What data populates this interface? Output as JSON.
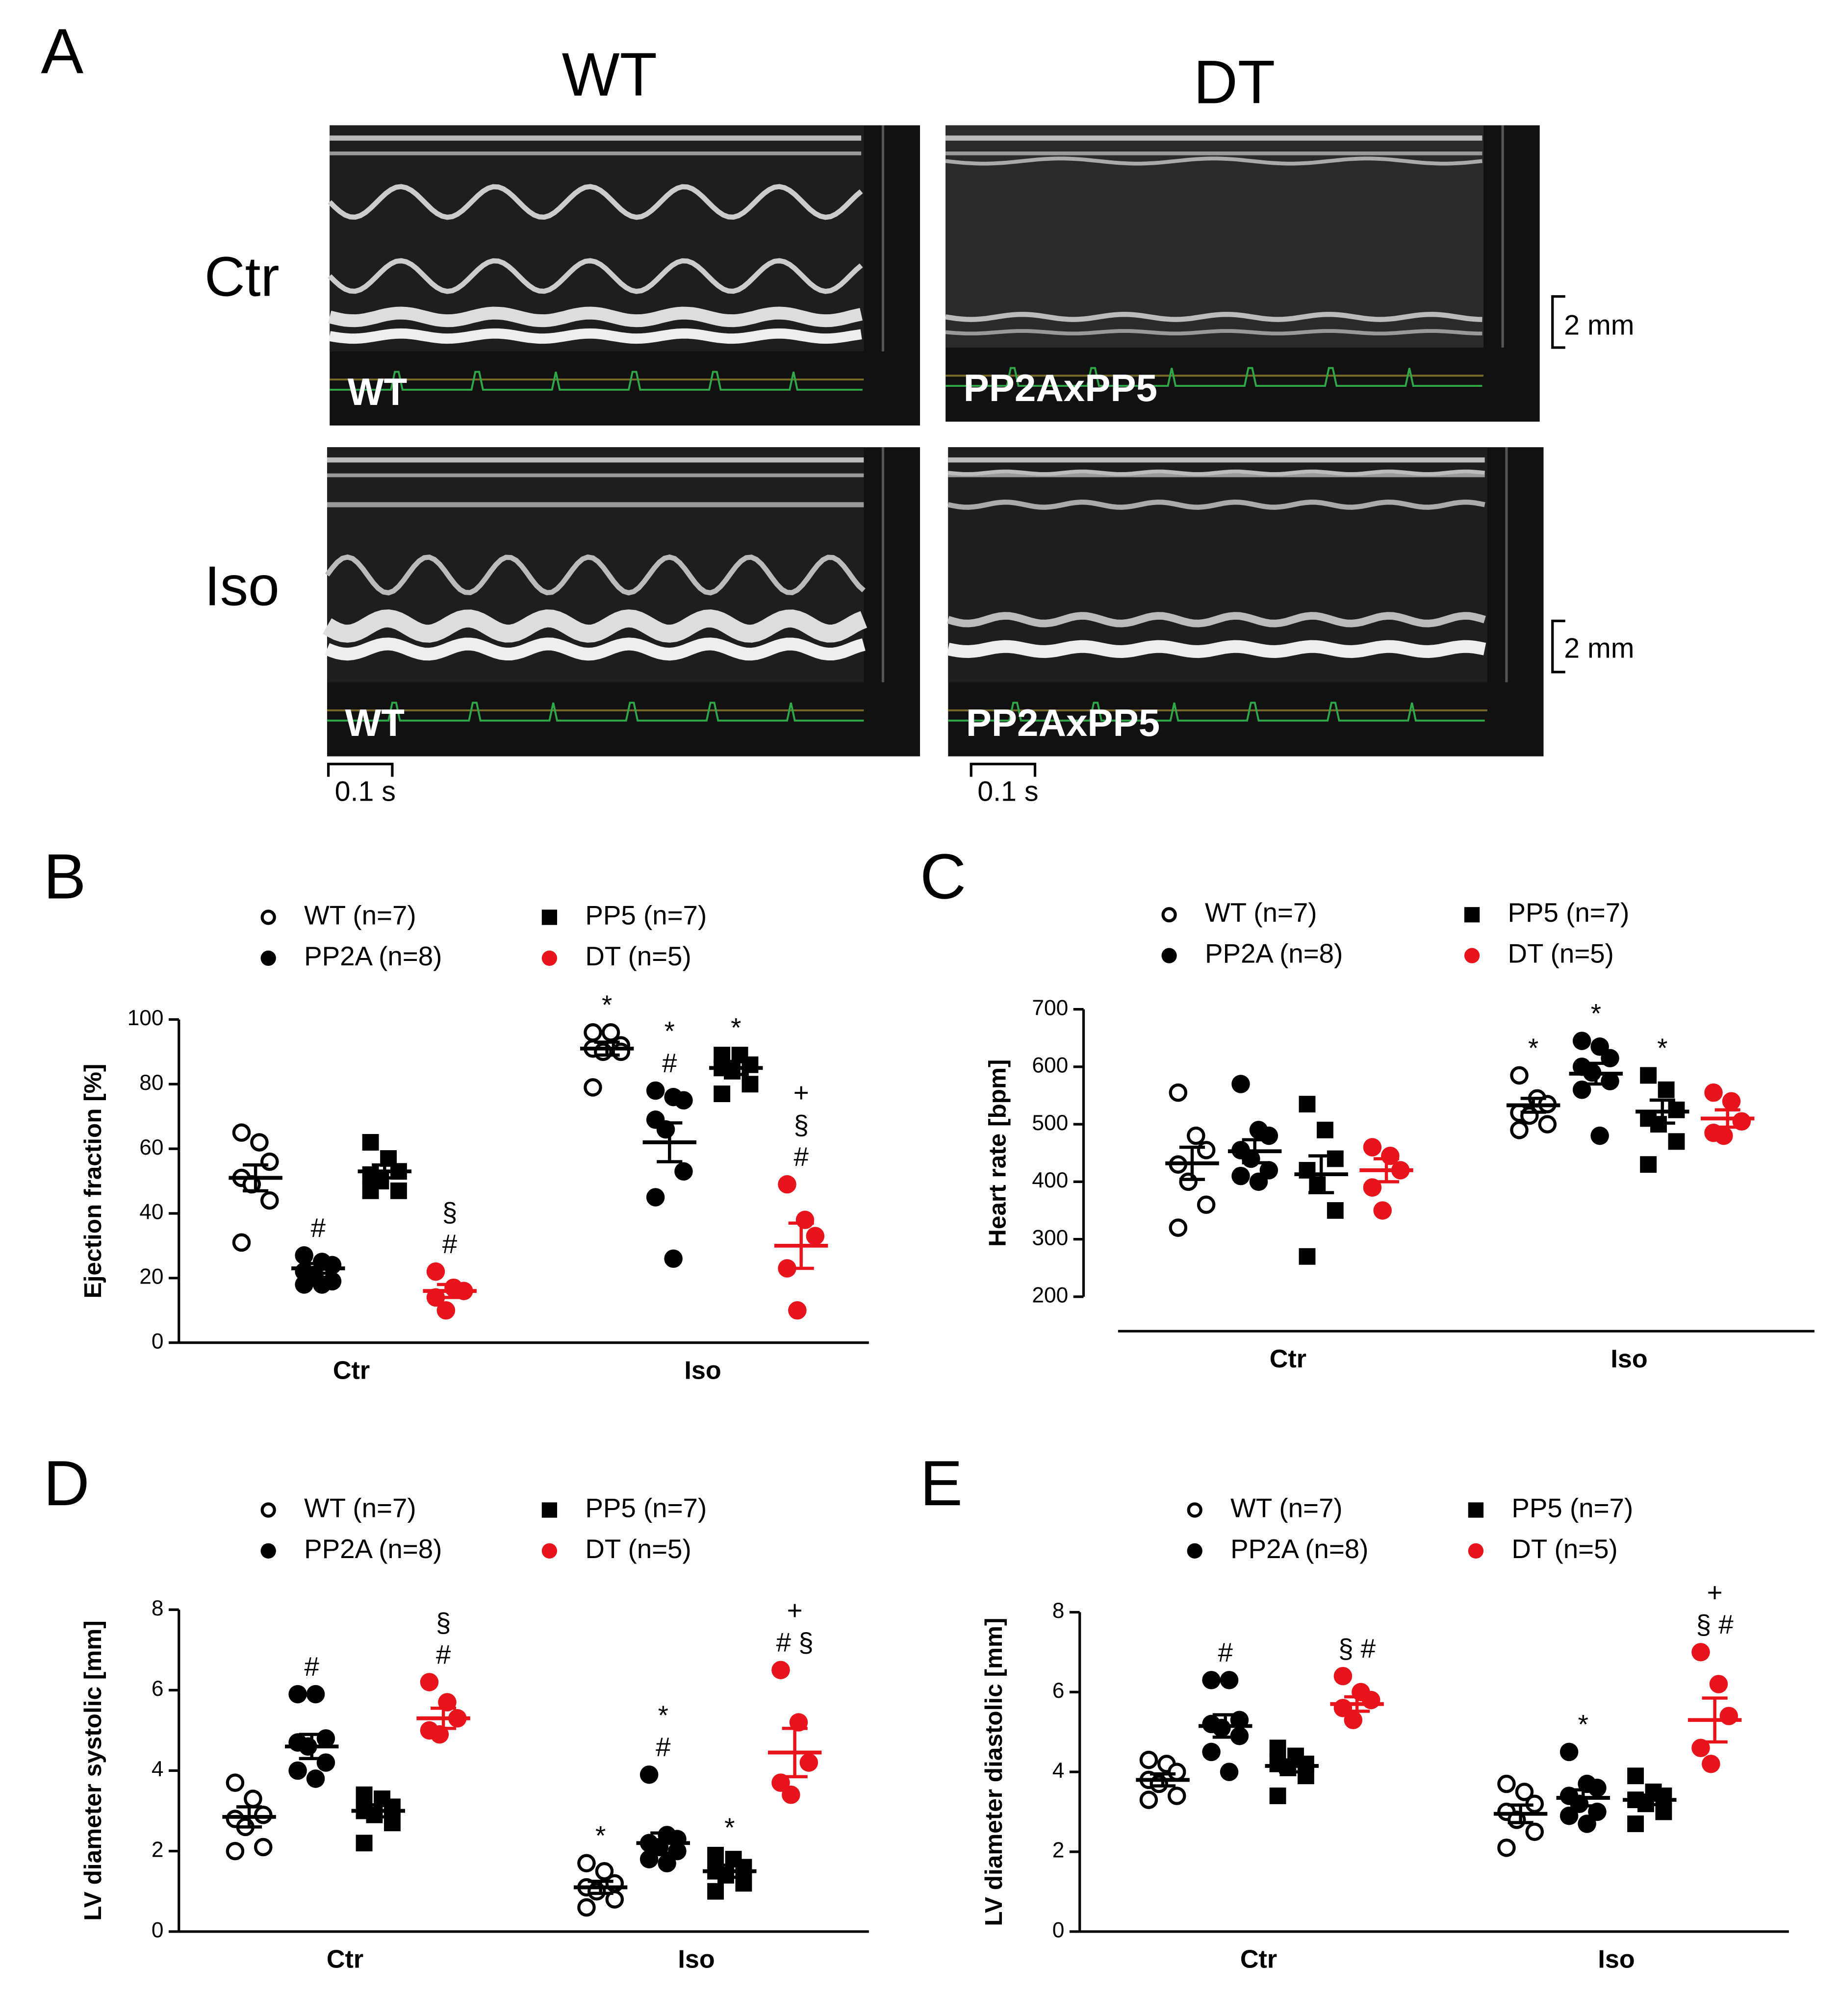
{
  "panel_a": {
    "label": "A",
    "columns": [
      "WT",
      "DT"
    ],
    "rows": [
      "Ctr",
      "Iso"
    ],
    "image_labels": [
      "WT",
      "PP2AxPP5",
      "WT",
      "PP2AxPP5"
    ],
    "scale_y": "2 mm",
    "scale_x": "0.1 s"
  },
  "chart_data": [
    {
      "type": "scatter",
      "panel": "B",
      "y_label": "Ejection fraction [%]",
      "categories": [
        "Ctr",
        "Iso"
      ],
      "ylim": [
        0,
        100
      ],
      "yticks": [
        0,
        20,
        40,
        60,
        80,
        100
      ],
      "series": [
        {
          "name": "WT (n=7)",
          "color": "#000000",
          "marker": "circle",
          "filled": false,
          "values": [
            [
              65,
              62,
              56,
              51,
              49,
              44,
              31
            ],
            [
              96,
              96,
              92,
              91,
              90,
              90,
              79
            ]
          ],
          "means": [
            51,
            91
          ],
          "sems": [
            4,
            2
          ],
          "annotations": [
            [],
            [
              "*"
            ]
          ]
        },
        {
          "name": "PP2A (n=8)",
          "color": "#000000",
          "marker": "circle",
          "filled": true,
          "values": [
            [
              27,
              25,
              24,
              22,
              21,
              19,
              18,
              18
            ],
            [
              78,
              76,
              75,
              69,
              66,
              53,
              45,
              26
            ]
          ],
          "means": [
            23,
            62
          ],
          "sems": [
            1.5,
            6
          ],
          "annotations": [
            [
              "#"
            ],
            [
              "*",
              "#"
            ]
          ]
        },
        {
          "name": "PP5 (n=7)",
          "color": "#000000",
          "marker": "square",
          "filled": true,
          "values": [
            [
              62,
              57,
              53,
              52,
              50,
              47,
              47
            ],
            [
              89,
              89,
              86,
              85,
              84,
              80,
              77
            ]
          ],
          "means": [
            53,
            85
          ],
          "sems": [
            2,
            2
          ],
          "annotations": [
            [],
            [
              "*"
            ]
          ]
        },
        {
          "name": "DT (n=5)",
          "color": "#e8141b",
          "marker": "circle",
          "filled": true,
          "values": [
            [
              22,
              17,
              16,
              14,
              10
            ],
            [
              49,
              38,
              33,
              23,
              10
            ]
          ],
          "means": [
            16,
            30
          ],
          "sems": [
            2,
            7
          ],
          "annotations": [
            [
              "§",
              "#"
            ],
            [
              "+",
              "§",
              "#"
            ]
          ]
        }
      ]
    },
    {
      "type": "scatter",
      "panel": "C",
      "y_label": "Heart rate [bpm]",
      "categories": [
        "Ctr",
        "Iso"
      ],
      "ylim": [
        200,
        700
      ],
      "yticks": [
        200,
        300,
        400,
        500,
        600,
        700
      ],
      "detached_x_axis": true,
      "series": [
        {
          "name": "WT (n=7)",
          "color": "#000000",
          "marker": "circle",
          "filled": false,
          "values": [
            [
              555,
              480,
              455,
              430,
              400,
              360,
              320
            ],
            [
              585,
              545,
              535,
              520,
              515,
              500,
              490
            ]
          ],
          "means": [
            432,
            533
          ],
          "sems": [
            28,
            12
          ],
          "annotations": [
            [],
            [
              "*"
            ]
          ]
        },
        {
          "name": "PP2A (n=8)",
          "color": "#000000",
          "marker": "circle",
          "filled": true,
          "values": [
            [
              570,
              490,
              480,
              455,
              440,
              420,
              410,
              400
            ],
            [
              645,
              635,
              615,
              600,
              590,
              575,
              560,
              480
            ]
          ],
          "means": [
            453,
            588
          ],
          "sems": [
            20,
            18
          ],
          "annotations": [
            [],
            [
              "*"
            ]
          ]
        },
        {
          "name": "PP5 (n=7)",
          "color": "#000000",
          "marker": "square",
          "filled": true,
          "values": [
            [
              535,
              490,
              440,
              420,
              395,
              350,
              270
            ],
            [
              585,
              560,
              525,
              510,
              500,
              470,
              430
            ]
          ],
          "means": [
            413,
            522
          ],
          "sems": [
            32,
            20
          ],
          "annotations": [
            [],
            [
              "*"
            ]
          ]
        },
        {
          "name": "DT (n=5)",
          "color": "#e8141b",
          "marker": "circle",
          "filled": true,
          "values": [
            [
              460,
              445,
              420,
              390,
              350
            ],
            [
              555,
              540,
              505,
              485,
              480
            ]
          ],
          "means": [
            420,
            510
          ],
          "sems": [
            20,
            15
          ],
          "annotations": [
            [],
            []
          ]
        }
      ]
    },
    {
      "type": "scatter",
      "panel": "D",
      "y_label": "LV diameter systolic [mm]",
      "categories": [
        "Ctr",
        "Iso"
      ],
      "ylim": [
        0,
        8
      ],
      "yticks": [
        0,
        2,
        4,
        6,
        8
      ],
      "series": [
        {
          "name": "WT (n=7)",
          "color": "#000000",
          "marker": "circle",
          "filled": false,
          "values": [
            [
              3.7,
              3.3,
              2.9,
              2.8,
              2.6,
              2.1,
              2.0
            ],
            [
              1.7,
              1.5,
              1.2,
              1.1,
              1.0,
              0.8,
              0.6
            ]
          ],
          "means": [
            2.85,
            1.1
          ],
          "sems": [
            0.25,
            0.15
          ],
          "annotations": [
            [],
            [
              "*"
            ]
          ]
        },
        {
          "name": "PP2A (n=8)",
          "color": "#000000",
          "marker": "circle",
          "filled": true,
          "values": [
            [
              5.9,
              5.9,
              4.8,
              4.7,
              4.6,
              4.2,
              4.0,
              3.8
            ],
            [
              3.9,
              2.4,
              2.3,
              2.2,
              2.1,
              2.0,
              1.8,
              1.7
            ]
          ],
          "means": [
            4.6,
            2.2
          ],
          "sems": [
            0.3,
            0.25
          ],
          "annotations": [
            [
              "#"
            ],
            [
              "*",
              "#"
            ]
          ]
        },
        {
          "name": "PP5 (n=7)",
          "color": "#000000",
          "marker": "square",
          "filled": true,
          "values": [
            [
              3.4,
              3.3,
              3.1,
              3.0,
              2.9,
              2.7,
              2.2
            ],
            [
              1.9,
              1.8,
              1.6,
              1.5,
              1.4,
              1.2,
              1.0
            ]
          ],
          "means": [
            3.0,
            1.5
          ],
          "sems": [
            0.15,
            0.15
          ],
          "annotations": [
            [],
            [
              "*"
            ]
          ]
        },
        {
          "name": "DT (n=5)",
          "color": "#e8141b",
          "marker": "circle",
          "filled": true,
          "values": [
            [
              6.2,
              5.7,
              5.3,
              5.0,
              4.9
            ],
            [
              6.5,
              5.2,
              4.2,
              3.7,
              3.4
            ]
          ],
          "means": [
            5.3,
            4.45
          ],
          "sems": [
            0.25,
            0.6
          ],
          "annotations": [
            [
              "§",
              "#"
            ],
            [
              "+",
              "# §"
            ]
          ]
        }
      ]
    },
    {
      "type": "scatter",
      "panel": "E",
      "y_label": "LV diameter diastolic [mm]",
      "categories": [
        "Ctr",
        "Iso"
      ],
      "ylim": [
        0,
        8
      ],
      "yticks": [
        0,
        2,
        4,
        6,
        8
      ],
      "series": [
        {
          "name": "WT (n=7)",
          "color": "#000000",
          "marker": "circle",
          "filled": false,
          "values": [
            [
              4.3,
              4.2,
              4.0,
              3.8,
              3.7,
              3.4,
              3.3
            ],
            [
              3.7,
              3.5,
              3.2,
              3.0,
              2.8,
              2.5,
              2.1
            ]
          ],
          "means": [
            3.8,
            2.95
          ],
          "sems": [
            0.15,
            0.22
          ],
          "annotations": [
            [],
            []
          ]
        },
        {
          "name": "PP2A (n=8)",
          "color": "#000000",
          "marker": "circle",
          "filled": true,
          "values": [
            [
              6.3,
              6.3,
              5.3,
              5.2,
              5.1,
              4.9,
              4.5,
              4.0
            ],
            [
              4.5,
              3.7,
              3.6,
              3.4,
              3.2,
              3.0,
              2.9,
              2.7
            ]
          ],
          "means": [
            5.15,
            3.35
          ],
          "sems": [
            0.28,
            0.2
          ],
          "annotations": [
            [
              "#"
            ],
            [
              "*"
            ]
          ]
        },
        {
          "name": "PP5 (n=7)",
          "color": "#000000",
          "marker": "square",
          "filled": true,
          "values": [
            [
              4.6,
              4.4,
              4.2,
              4.2,
              4.1,
              3.9,
              3.4
            ],
            [
              3.9,
              3.5,
              3.4,
              3.3,
              3.2,
              3.0,
              2.7
            ]
          ],
          "means": [
            4.15,
            3.3
          ],
          "sems": [
            0.15,
            0.12
          ],
          "annotations": [
            [],
            []
          ]
        },
        {
          "name": "DT (n=5)",
          "color": "#e8141b",
          "marker": "circle",
          "filled": true,
          "values": [
            [
              6.4,
              6.0,
              5.8,
              5.6,
              5.3
            ],
            [
              7.0,
              6.2,
              5.4,
              4.6,
              4.2
            ]
          ],
          "means": [
            5.7,
            5.3
          ],
          "sems": [
            0.18,
            0.55
          ],
          "annotations": [
            [
              "§ #"
            ],
            [
              "+",
              "§ #"
            ]
          ]
        }
      ]
    }
  ]
}
